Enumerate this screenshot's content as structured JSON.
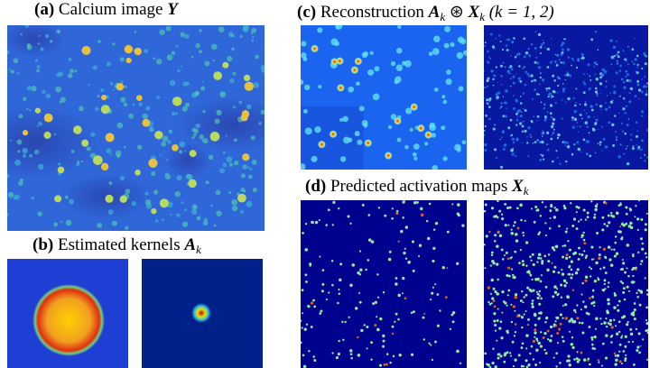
{
  "panels": [
    {
      "label": "(a)",
      "text": "Calcium image",
      "math": "Y"
    },
    {
      "label": "(b)",
      "text": "Estimated kernels",
      "math": "A",
      "sub": "k"
    },
    {
      "label": "(c)",
      "text": "Reconstruction",
      "math": "A",
      "sub": "k",
      "op": "⊛",
      "math2": "X",
      "sub2": "k",
      "extra": "(k = 1, 2)"
    },
    {
      "label": "(d)",
      "text": "Predicted activation maps",
      "math": "X",
      "sub": "k"
    }
  ]
}
